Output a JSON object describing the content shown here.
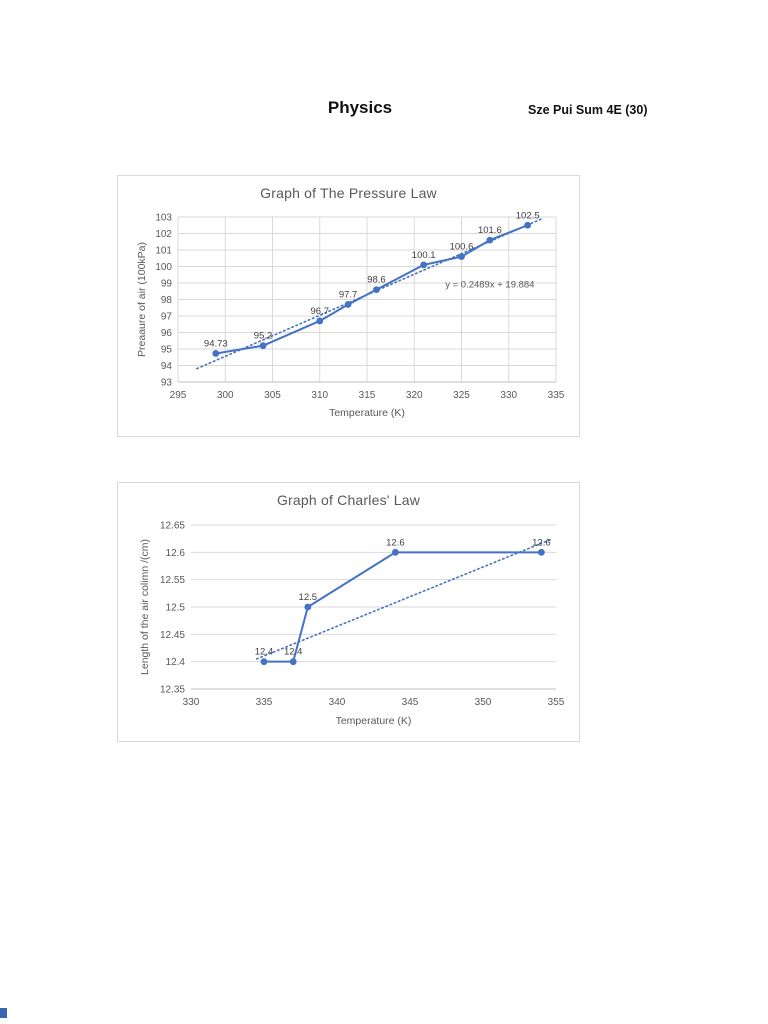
{
  "page": {
    "title": "Physics",
    "author": "Sze Pui Sum 4E (30)",
    "background": "#ffffff"
  },
  "chart_data": [
    {
      "type": "line",
      "title": "Graph of The Pressure Law",
      "xlabel": "Temperature (K)",
      "ylabel": "Preaaure of air (100kPa)",
      "xlim": [
        295,
        335
      ],
      "ylim": [
        93,
        103
      ],
      "xticks": [
        295,
        300,
        305,
        310,
        315,
        320,
        325,
        330,
        335
      ],
      "yticks": [
        93,
        94,
        95,
        96,
        97,
        98,
        99,
        100,
        101,
        102,
        103
      ],
      "grid_x": true,
      "grid_y": true,
      "legend": "none",
      "series": [
        {
          "name": "Pressure of air",
          "x": [
            299,
            304,
            310,
            313,
            316,
            321,
            325,
            328,
            332
          ],
          "y": [
            94.73,
            95.2,
            96.7,
            97.7,
            98.6,
            100.1,
            100.6,
            101.6,
            102.5
          ],
          "labels": [
            "94.73",
            "95.2",
            "96.7",
            "97.7",
            "98.6",
            "100.1",
            "100.6",
            "101.6",
            "102.5"
          ]
        }
      ],
      "trendline": {
        "style": "dotted",
        "x": [
          297,
          333.5
        ],
        "y": [
          93.81,
          102.89
        ],
        "equation": "y = 0.2489x + 19.884",
        "equation_at": {
          "x": 328,
          "y": 98.9
        }
      },
      "colors": {
        "series": "#4472c4",
        "grid": "#d9d9d9",
        "axis": "#bfbfbf",
        "text": "#595959",
        "label": "#404040"
      }
    },
    {
      "type": "line",
      "title": "Graph of Charles' Law",
      "xlabel": "Temperature (K)",
      "ylabel": "Length of the air colimn /(cm)",
      "xlim": [
        330,
        355
      ],
      "ylim": [
        12.35,
        12.65
      ],
      "xticks": [
        330,
        335,
        340,
        345,
        350,
        355
      ],
      "yticks": [
        12.35,
        12.4,
        12.45,
        12.5,
        12.55,
        12.6,
        12.65
      ],
      "grid_x": false,
      "grid_y": true,
      "legend": "none",
      "series": [
        {
          "name": "Length of air column",
          "x": [
            335,
            337,
            338,
            344,
            354
          ],
          "y": [
            12.4,
            12.4,
            12.5,
            12.6,
            12.6
          ],
          "labels": [
            "12.4",
            "12.4",
            "12.5",
            "12.6",
            "12.6"
          ]
        }
      ],
      "trendline": {
        "style": "dotted",
        "x": [
          334.5,
          354.6
        ],
        "y": [
          12.405,
          12.623
        ],
        "equation": "",
        "equation_at": null
      },
      "colors": {
        "series": "#4472c4",
        "grid": "#d9d9d9",
        "axis": "#bfbfbf",
        "text": "#595959",
        "label": "#404040"
      }
    }
  ]
}
